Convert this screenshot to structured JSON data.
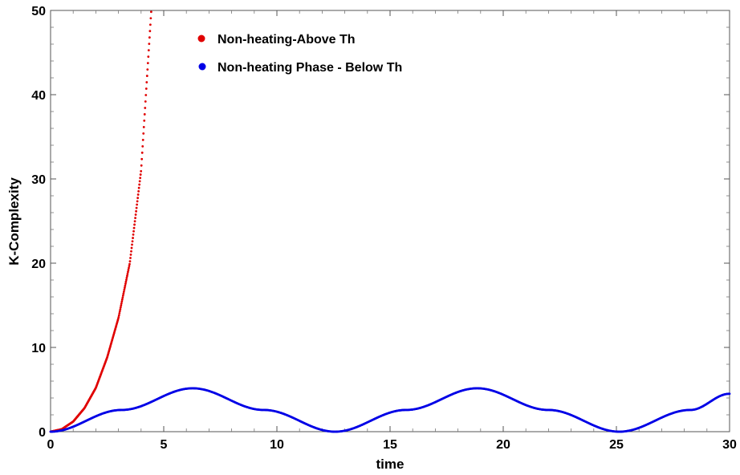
{
  "chart_data": {
    "type": "scatter",
    "xlabel": "time",
    "ylabel": "K-Complexity",
    "xlim": [
      0,
      30
    ],
    "ylim": [
      0,
      50
    ],
    "x_ticks": [
      0,
      5,
      10,
      15,
      20,
      25,
      30
    ],
    "y_ticks": [
      0,
      10,
      20,
      30,
      40,
      50
    ],
    "grid": false,
    "legend_position": "top-center",
    "series": [
      {
        "name": "Non-heating-Above Th",
        "color": "#e00000",
        "x_range": [
          0,
          4.45
        ],
        "x": [
          0,
          0.5,
          1.0,
          1.5,
          2.0,
          2.5,
          3.0,
          3.5,
          4.0,
          4.45
        ],
        "values": [
          0,
          0.3,
          1.2,
          2.8,
          5.2,
          8.8,
          13.5,
          20.0,
          31.0,
          50.0
        ]
      },
      {
        "name": "Non-heating Phase - Below Th",
        "color": "#0000e6",
        "x_range": [
          0,
          30
        ],
        "x": [
          0,
          3.14,
          6.28,
          9.42,
          12.57,
          15.71,
          18.85,
          21.99,
          25.13,
          28.27,
          30
        ],
        "values": [
          0,
          2.58,
          5.15,
          2.58,
          0,
          2.58,
          5.15,
          2.58,
          0,
          2.58,
          4.5
        ]
      }
    ]
  }
}
